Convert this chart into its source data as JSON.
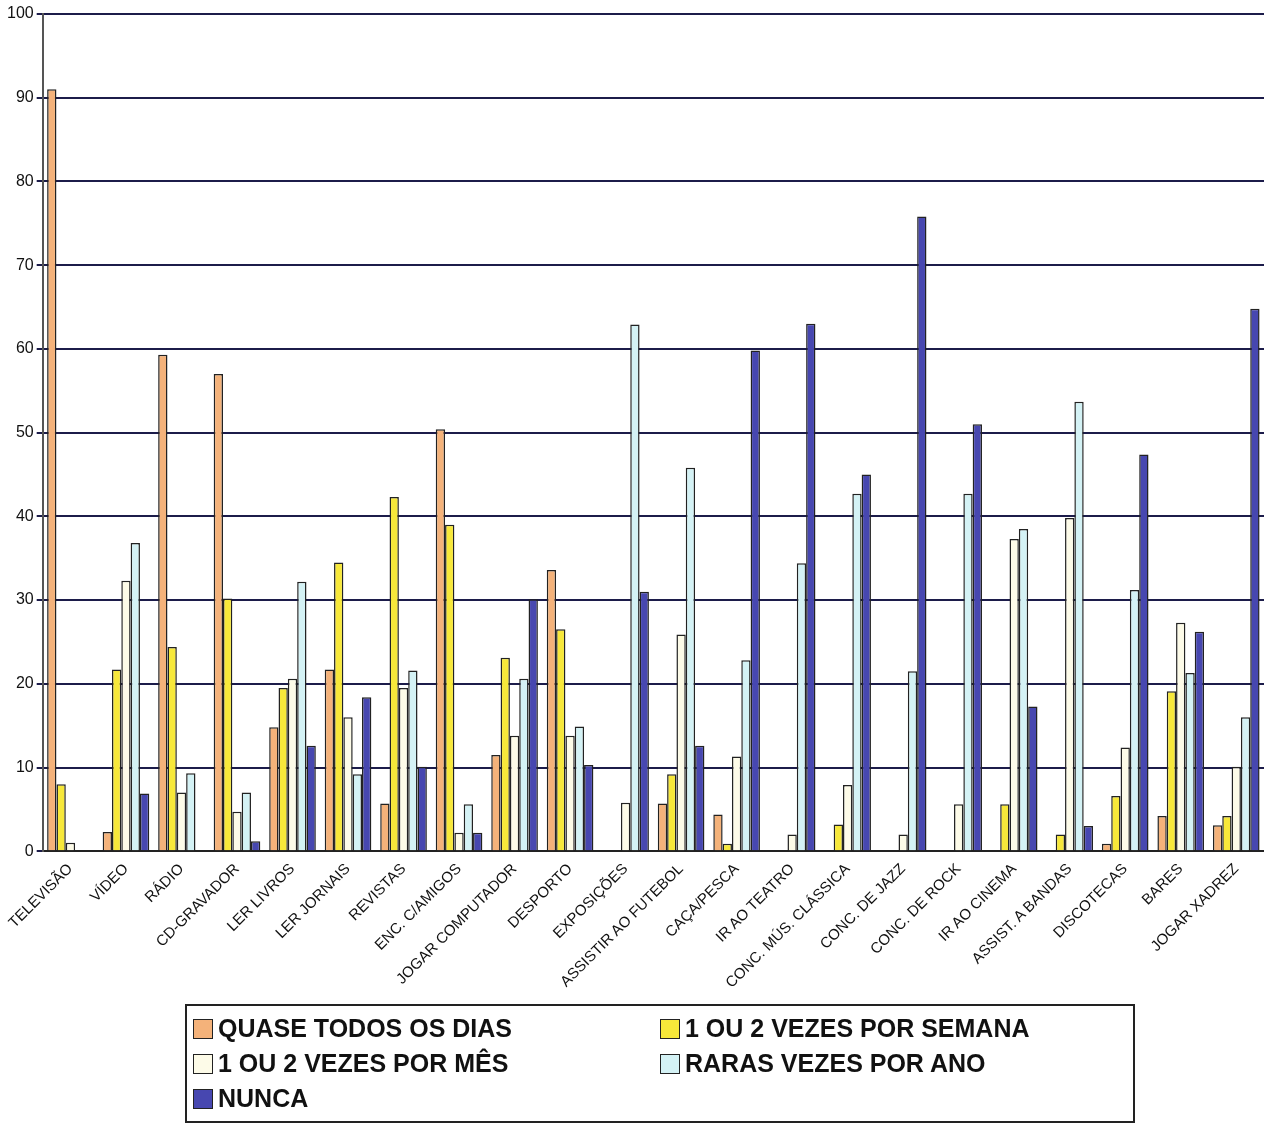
{
  "chart_data": {
    "type": "bar",
    "categories": [
      "TELEVISÃO",
      "VÍDEO",
      "RÁDIO",
      "CD-GRAVADOR",
      "LER LIVROS",
      "LER JORNAIS",
      "REVISTAS",
      "ENC. C/AMIGOS",
      "JOGAR COMPUTADOR",
      "DESPORTO",
      "EXPOSIÇÕES",
      "ASSISTIR AO FUTEBOL",
      "CAÇA/PESCA",
      "IR AO TEATRO",
      "CONC. MÚS. CLÁSSICA",
      "CONC. DE JAZZ",
      "CONC. DE ROCK",
      "IR AO CINEMA",
      "ASSIST. A BANDAS",
      "DISCOTECAS",
      "BARES",
      "JOGAR XADREZ"
    ],
    "series": [
      {
        "name": "QUASE TODOS OS DIAS",
        "color": "#f4b27a",
        "values": [
          91,
          2.3,
          59.3,
          57,
          14.8,
          21.7,
          5.7,
          50.4,
          11.5,
          33.6,
          0,
          5.7,
          4.4,
          0,
          0,
          0,
          0,
          0,
          0,
          0.9,
          4.2,
          3.1
        ]
      },
      {
        "name": "1 OU 2 VEZES POR SEMANA",
        "color": "#f7e83a",
        "values": [
          8,
          21.7,
          24.4,
          30.2,
          19.5,
          34.5,
          42.3,
          39,
          23.1,
          26.5,
          0,
          9.2,
          0.9,
          0,
          3.2,
          0,
          0,
          5.6,
          2,
          6.6,
          19.1,
          4.2
        ]
      },
      {
        "name": "1 OU 2 VEZES POR MÊS",
        "color": "#fdfbe8",
        "values": [
          1,
          32.3,
          7,
          4.7,
          20.6,
          16,
          19.5,
          2.2,
          13.8,
          13.8,
          5.8,
          25.9,
          11.3,
          2,
          7.9,
          2,
          5.6,
          37.3,
          39.8,
          12.4,
          27.3,
          10.1
        ]
      },
      {
        "name": "RARAS VEZES POR ANO",
        "color": "#d4f2f5",
        "values": [
          0,
          36.8,
          9.3,
          7,
          32.2,
          9.2,
          21.6,
          5.6,
          20.6,
          14.9,
          62.9,
          45.8,
          22.8,
          34.4,
          42.7,
          21.5,
          42.7,
          38.5,
          53.7,
          31.2,
          21.3,
          16
        ]
      },
      {
        "name": "NUNCA",
        "color": "#4747b0",
        "values": [
          0,
          6.9,
          0,
          1.2,
          12.6,
          18.4,
          10.1,
          2.2,
          30.1,
          10.3,
          31,
          12.6,
          59.8,
          63,
          45,
          75.8,
          51,
          17.3,
          3,
          47.4,
          26.2,
          64.8
        ]
      }
    ],
    "ylim": [
      0,
      100
    ],
    "yticks": [
      0,
      10,
      20,
      30,
      40,
      50,
      60,
      70,
      80,
      90,
      100
    ],
    "grid": "y",
    "legend": "bottom"
  }
}
